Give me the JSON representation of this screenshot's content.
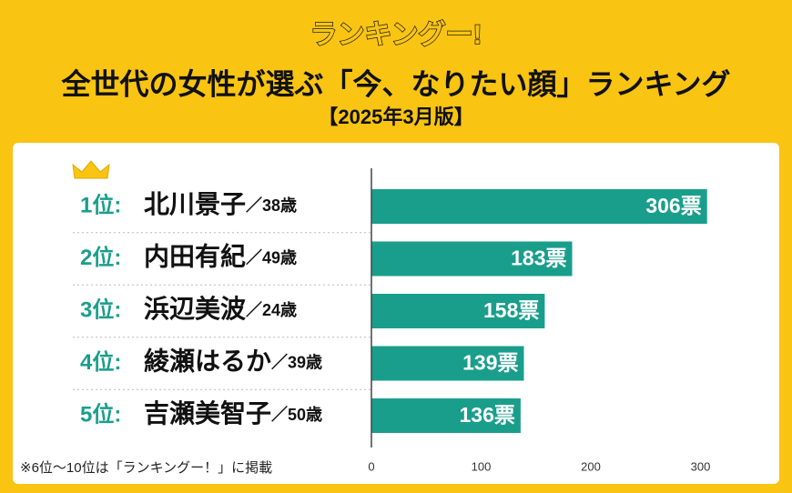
{
  "logo": "ランキングー!",
  "chart_data": {
    "type": "barh",
    "title": "全世代の女性が選ぶ「今、なりたい顔」ランキング",
    "subtitle": "【2025年3月版】",
    "rank_labels": [
      "1位:",
      "2位:",
      "3位:",
      "4位:",
      "5位:"
    ],
    "categories": [
      "北川景子",
      "内田有紀",
      "浜辺美波",
      "綾瀬はるか",
      "吉瀬美智子"
    ],
    "age_labels": [
      "／38歳",
      "／49歳",
      "／24歳",
      "／39歳",
      "／50歳"
    ],
    "values": [
      306,
      183,
      158,
      139,
      136
    ],
    "value_labels": [
      "306票",
      "183票",
      "158票",
      "139票",
      "136票"
    ],
    "color": "#1a9e8c",
    "xlim": [
      0,
      320
    ],
    "xticks": [
      0,
      100,
      200,
      300
    ],
    "grid": false,
    "footnote": "※6位〜10位は「ランキングー！」に掲載"
  }
}
